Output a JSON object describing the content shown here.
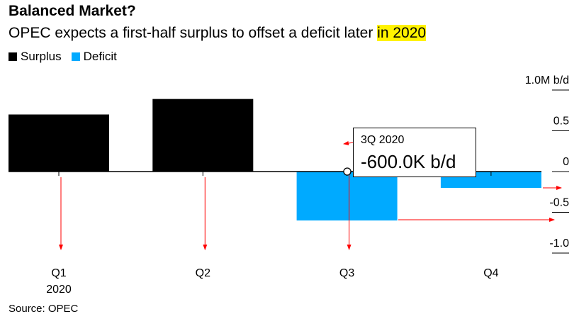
{
  "title": "Balanced Market?",
  "subtitle_pre": "OPEC expects a first-half surplus to offset a deficit later ",
  "subtitle_hl": "in 2020",
  "source": "Source: OPEC",
  "colors": {
    "surplus": "#000000",
    "deficit": "#00aaff",
    "highlight": "#fff200",
    "annotation": "#ff0000"
  },
  "tooltip": {
    "label": "3Q 2020",
    "value": "-600.0K b/d"
  },
  "chart_data": {
    "type": "bar",
    "title": "Balanced Market?",
    "categories": [
      "Q1",
      "Q2",
      "Q3",
      "Q4"
    ],
    "category_sublabels": [
      "2020",
      "",
      "",
      ""
    ],
    "values": [
      0.7,
      0.89,
      -0.6,
      -0.2
    ],
    "series": [
      {
        "name": "Surplus",
        "color": "#000000"
      },
      {
        "name": "Deficit",
        "color": "#00aaff"
      }
    ],
    "ylabel": "M b/d",
    "ylim": [
      -1.0,
      1.0
    ],
    "yticks": [
      1.0,
      0.5,
      0,
      -0.5,
      -1.0
    ],
    "ytick_labels": [
      "1.0M b/d",
      "0.5",
      "0",
      "-0.5",
      "-1.0"
    ],
    "legend": "top-left"
  }
}
